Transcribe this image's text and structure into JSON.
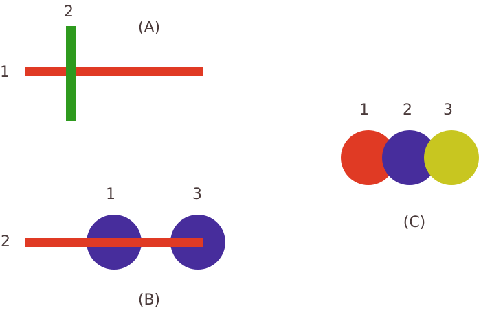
{
  "colors": {
    "red": "#e03a24",
    "green": "#2e9a1e",
    "purple": "#472d9c",
    "olive": "#c8c620",
    "text": "#4a3a3a"
  },
  "panel_a": {
    "caption": "(A)",
    "horizontal_label": "1",
    "vertical_label": "2"
  },
  "panel_b": {
    "caption": "(B)",
    "line_label": "2",
    "left_circle_label": "1",
    "right_circle_label": "3"
  },
  "panel_c": {
    "caption": "(C)",
    "circle_labels": [
      "1",
      "2",
      "3"
    ]
  }
}
